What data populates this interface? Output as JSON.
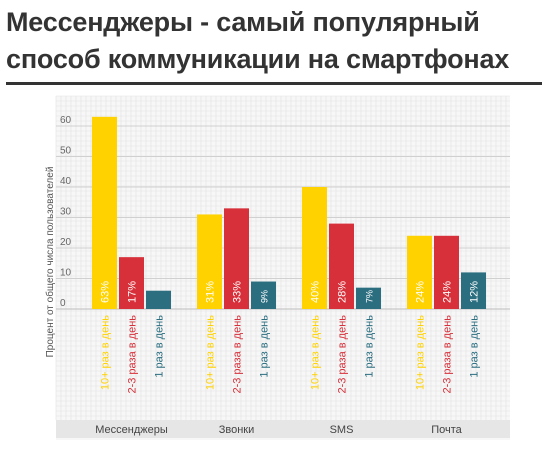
{
  "title_lines": [
    "Мессенджеры - самый популярный",
    "способ коммуникации на смартфонах"
  ],
  "chart_data": {
    "type": "bar",
    "title": "Мессенджеры - самый популярный способ коммуникации на смартфонах",
    "ylabel": "Процент от общего числа пользователей",
    "xlabel": "",
    "ylim": [
      0,
      70
    ],
    "yticks": [
      0,
      10,
      20,
      30,
      40,
      50,
      60
    ],
    "categories": [
      "Мессенджеры",
      "Звонки",
      "SMS",
      "Почта"
    ],
    "grid": true,
    "series": [
      {
        "name": "10+ раз в день",
        "color": "#FFD200",
        "values": [
          63,
          31,
          40,
          24
        ],
        "labels": [
          "63%",
          "31%",
          "40%",
          "24%"
        ]
      },
      {
        "name": "2-3 раза в день",
        "color": "#D7303A",
        "values": [
          17,
          33,
          28,
          24
        ],
        "labels": [
          "17%",
          "33%",
          "28%",
          "24%"
        ]
      },
      {
        "name": "1 раз в день",
        "color": "#2B6E80",
        "values": [
          6,
          9,
          7,
          12
        ],
        "labels": [
          "",
          "9%",
          "7%",
          "12%"
        ]
      }
    ]
  }
}
